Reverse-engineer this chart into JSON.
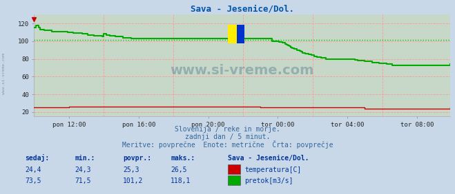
{
  "title": "Sava - Jesenice/Dol.",
  "title_color": "#0055aa",
  "bg_color": "#c8d8e8",
  "plot_bg_color": "#c8d8c8",
  "fig_size": [
    6.59,
    2.82
  ],
  "dpi": 100,
  "xlabel_ticks": [
    "pon 12:00",
    "pon 16:00",
    "pon 20:00",
    "tor 00:00",
    "tor 04:00",
    "tor 08:00"
  ],
  "ylabel_ticks": [
    20,
    40,
    60,
    80,
    100,
    120
  ],
  "ylim": [
    15,
    130
  ],
  "xlim": [
    0,
    287
  ],
  "grid_color": "#ff9999",
  "avg_flow_value": 101.2,
  "avg_flow_color": "#00cc00",
  "watermark_text": "www.si-vreme.com",
  "watermark_color": "#1a5276",
  "watermark_alpha": 0.3,
  "subtitle1": "Slovenija / reke in morje.",
  "subtitle2": "zadnji dan / 5 minut.",
  "subtitle3": "Meritve: povprečne  Enote: metrične  Črta: povprečje",
  "subtitle_color": "#336699",
  "table_color": "#003399",
  "table_headers": [
    "sedaj:",
    "min.:",
    "povpr.:",
    "maks.:"
  ],
  "temp_row": [
    "24,4",
    "24,3",
    "25,3",
    "26,5"
  ],
  "flow_row": [
    "73,5",
    "71,5",
    "101,2",
    "118,1"
  ],
  "legend_title": "Sava - Jesenice/Dol.",
  "legend_temp_label": "temperatura[C]",
  "legend_flow_label": "pretok[m3/s]",
  "temp_color": "#cc0000",
  "flow_color": "#00aa00",
  "n_points": 288,
  "temp_data": [
    25,
    25,
    25,
    25,
    25,
    25,
    25,
    25,
    25,
    25,
    25,
    25,
    25,
    25,
    25,
    25,
    25,
    25,
    25,
    25,
    25,
    25,
    25,
    25,
    26,
    26,
    26,
    26,
    26,
    26,
    26,
    26,
    26,
    26,
    26,
    26,
    26,
    26,
    26,
    26,
    26,
    26,
    26,
    26,
    26,
    26,
    26,
    26,
    26,
    26,
    26,
    26,
    26,
    26,
    26,
    26,
    26,
    26,
    26,
    26,
    26,
    26,
    26,
    26,
    26,
    26,
    26,
    26,
    26,
    26,
    26,
    26,
    26,
    26,
    26,
    26,
    26,
    26,
    26,
    26,
    26,
    26,
    26,
    26,
    26,
    26,
    26,
    26,
    26,
    26,
    26,
    26,
    26,
    26,
    26,
    26,
    26,
    26,
    26,
    26,
    26,
    26,
    26,
    26,
    26,
    26,
    26,
    26,
    26,
    26,
    26,
    26,
    26,
    26,
    26,
    26,
    26,
    26,
    26,
    26,
    26,
    26,
    26,
    26,
    26,
    26,
    26,
    26,
    26,
    26,
    26,
    26,
    26,
    26,
    26,
    26,
    26,
    26,
    26,
    26,
    26,
    26,
    26,
    26,
    26,
    26,
    26,
    26,
    26,
    26,
    26,
    26,
    26,
    26,
    26,
    26,
    25,
    25,
    25,
    25,
    25,
    25,
    25,
    25,
    25,
    25,
    25,
    25,
    25,
    25,
    25,
    25,
    25,
    25,
    25,
    25,
    25,
    25,
    25,
    25,
    25,
    25,
    25,
    25,
    25,
    25,
    25,
    25,
    25,
    25,
    25,
    25,
    25,
    25,
    25,
    25,
    25,
    25,
    25,
    25,
    25,
    25,
    25,
    25,
    25,
    25,
    25,
    25,
    25,
    25,
    25,
    25,
    25,
    25,
    25,
    25,
    25,
    25,
    25,
    25,
    25,
    25,
    25,
    25,
    25,
    25,
    25,
    25,
    24,
    24,
    24,
    24,
    24,
    24,
    24,
    24,
    24,
    24,
    24,
    24,
    24,
    24,
    24,
    24,
    24,
    24,
    24,
    24,
    24,
    24,
    24,
    24,
    24,
    24,
    24,
    24,
    24,
    24,
    24,
    24,
    24,
    24,
    24,
    24,
    24,
    24,
    24,
    24,
    24,
    24,
    24,
    24,
    24,
    24,
    24,
    24,
    24,
    24,
    24,
    24,
    24,
    24,
    24,
    24,
    24,
    24,
    24,
    25
  ],
  "flow_data": [
    115,
    118,
    118,
    115,
    113,
    113,
    113,
    112,
    112,
    112,
    112,
    112,
    111,
    111,
    111,
    111,
    111,
    111,
    111,
    111,
    111,
    111,
    111,
    110,
    110,
    110,
    110,
    109,
    109,
    109,
    109,
    109,
    109,
    108,
    108,
    108,
    108,
    107,
    107,
    107,
    107,
    106,
    106,
    106,
    106,
    106,
    106,
    105,
    108,
    108,
    107,
    107,
    106,
    106,
    106,
    106,
    105,
    105,
    105,
    105,
    105,
    104,
    104,
    104,
    104,
    104,
    104,
    103,
    103,
    103,
    103,
    103,
    103,
    103,
    103,
    103,
    103,
    103,
    103,
    103,
    103,
    103,
    103,
    103,
    103,
    103,
    103,
    103,
    103,
    103,
    103,
    103,
    103,
    103,
    103,
    103,
    103,
    103,
    103,
    103,
    103,
    103,
    103,
    103,
    103,
    103,
    103,
    103,
    103,
    103,
    103,
    103,
    103,
    103,
    103,
    103,
    103,
    103,
    103,
    103,
    103,
    103,
    103,
    103,
    103,
    103,
    103,
    103,
    103,
    103,
    103,
    103,
    103,
    103,
    103,
    103,
    103,
    103,
    103,
    103,
    103,
    103,
    103,
    103,
    103,
    103,
    103,
    103,
    103,
    103,
    103,
    103,
    103,
    103,
    103,
    103,
    103,
    103,
    103,
    103,
    103,
    103,
    103,
    103,
    100,
    100,
    100,
    100,
    100,
    99,
    99,
    98,
    98,
    97,
    96,
    95,
    94,
    93,
    92,
    91,
    91,
    90,
    90,
    89,
    88,
    87,
    87,
    86,
    86,
    85,
    85,
    84,
    84,
    83,
    83,
    82,
    82,
    82,
    81,
    81,
    81,
    80,
    80,
    80,
    80,
    80,
    80,
    80,
    80,
    80,
    80,
    80,
    80,
    80,
    80,
    80,
    80,
    80,
    80,
    80,
    80,
    79,
    79,
    78,
    78,
    78,
    78,
    78,
    77,
    77,
    77,
    77,
    77,
    76,
    76,
    76,
    76,
    76,
    75,
    75,
    75,
    75,
    75,
    74,
    74,
    74,
    74,
    73,
    73,
    73,
    73,
    73,
    73,
    73,
    73,
    73,
    73,
    73,
    73,
    73,
    73,
    73,
    73,
    73,
    73,
    73,
    73,
    73,
    73,
    73,
    73,
    73,
    73,
    73,
    73,
    73,
    73,
    73,
    73,
    73,
    73,
    73,
    73,
    73,
    73,
    73,
    73,
    74
  ]
}
